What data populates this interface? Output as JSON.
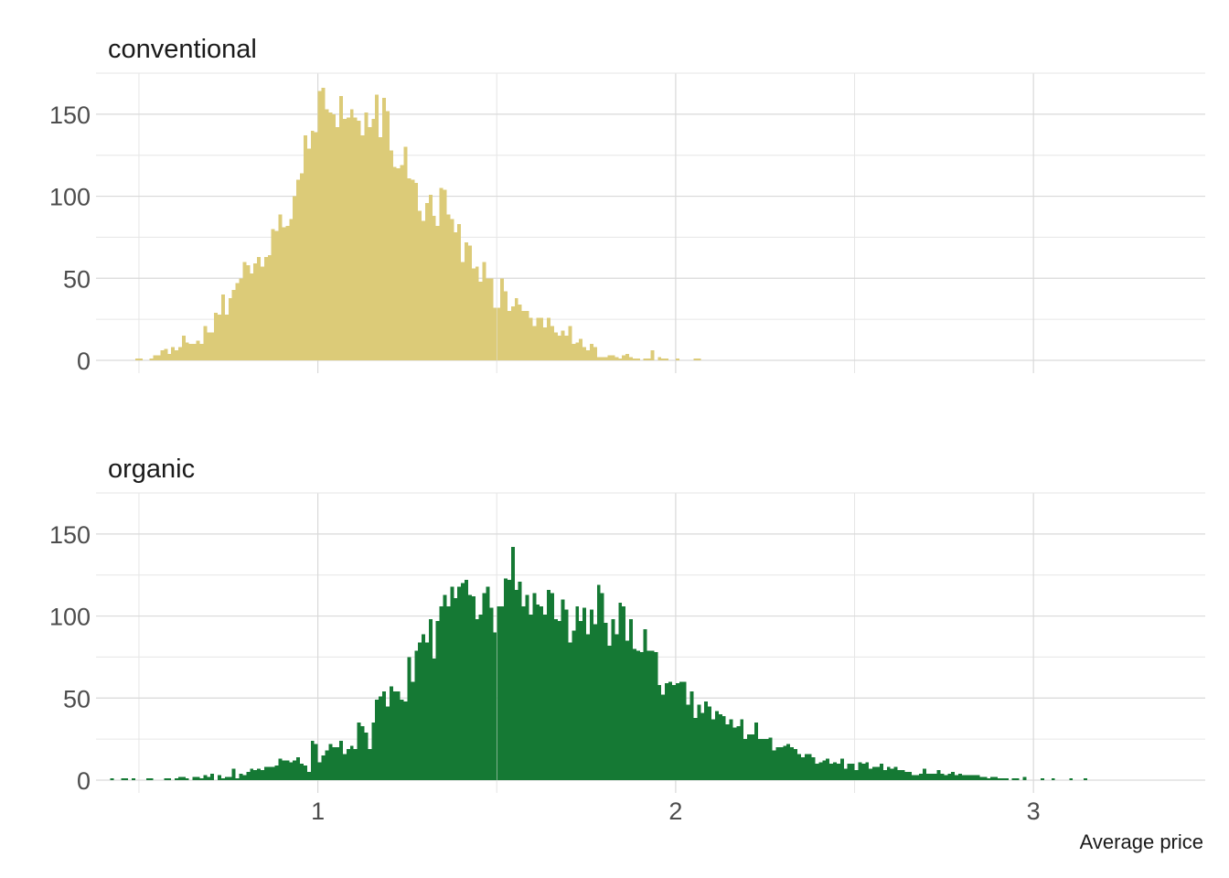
{
  "chart_data": {
    "type": "bar",
    "subtype": "histogram",
    "facet_layout": "vertical",
    "x_axis": {
      "title": "Average price",
      "ticks": [
        1,
        2,
        3
      ],
      "tick_labels": [
        "1",
        "2",
        "3"
      ],
      "range": [
        0.38,
        3.48
      ],
      "bin_start": 0.4,
      "bin_width": 0.01
    },
    "y_axis": {
      "ticks": [
        0,
        50,
        100,
        150
      ],
      "tick_labels": [
        "0",
        "50",
        "100",
        "150"
      ],
      "range": [
        0,
        175
      ]
    },
    "grid": true,
    "legend": "none",
    "panels": [
      {
        "title": "conventional",
        "color": "#dccb78",
        "values": [
          0,
          0,
          0,
          0,
          0,
          0,
          0,
          0,
          0,
          1,
          1,
          0,
          0,
          1,
          3,
          3,
          6,
          7,
          4,
          8,
          6,
          8,
          15,
          11,
          10,
          10,
          12,
          10,
          21,
          17,
          17,
          29,
          28,
          40,
          28,
          38,
          43,
          47,
          50,
          60,
          58,
          53,
          59,
          63,
          57,
          63,
          64,
          80,
          79,
          89,
          81,
          82,
          86,
          100,
          110,
          114,
          137,
          129,
          140,
          139,
          164,
          166,
          153,
          151,
          150,
          142,
          161,
          147,
          148,
          153,
          148,
          146,
          137,
          151,
          142,
          147,
          162,
          136,
          160,
          152,
          128,
          118,
          117,
          119,
          130,
          111,
          110,
          108,
          91,
          85,
          96,
          101,
          88,
          82,
          105,
          104,
          89,
          86,
          78,
          83,
          60,
          72,
          70,
          56,
          57,
          48,
          60,
          50,
          50,
          32,
          32,
          50,
          42,
          30,
          33,
          38,
          34,
          30,
          30,
          26,
          21,
          26,
          26,
          20,
          26,
          21,
          17,
          15,
          18,
          15,
          21,
          10,
          11,
          13,
          8,
          6,
          10,
          8,
          2,
          2,
          2,
          3,
          3,
          2,
          1,
          3,
          4,
          2,
          1,
          1,
          0,
          1,
          1,
          6,
          0,
          2,
          1,
          1,
          0,
          0,
          1,
          0,
          0,
          0,
          0,
          1,
          1,
          0,
          0,
          0
        ]
      },
      {
        "title": "organic",
        "color": "#157934",
        "values": [
          0,
          0,
          1,
          0,
          0,
          1,
          1,
          0,
          1,
          0,
          0,
          0,
          1,
          1,
          0,
          0,
          0,
          1,
          1,
          0,
          1,
          2,
          2,
          1,
          0,
          2,
          2,
          1,
          3,
          2,
          4,
          0,
          3,
          1,
          2,
          2,
          7,
          1,
          4,
          3,
          5,
          7,
          6,
          7,
          6,
          8,
          8,
          8,
          9,
          13,
          12,
          12,
          11,
          12,
          14,
          10,
          9,
          5,
          24,
          22,
          11,
          15,
          18,
          22,
          20,
          20,
          24,
          16,
          19,
          21,
          19,
          35,
          33,
          29,
          19,
          35,
          49,
          51,
          54,
          45,
          57,
          54,
          54,
          49,
          48,
          75,
          60,
          79,
          84,
          89,
          84,
          98,
          74,
          97,
          106,
          113,
          106,
          118,
          111,
          118,
          120,
          122,
          113,
          112,
          98,
          101,
          114,
          118,
          105,
          90,
          106,
          106,
          123,
          122,
          142,
          116,
          121,
          106,
          113,
          101,
          114,
          107,
          106,
          101,
          116,
          114,
          98,
          97,
          110,
          104,
          84,
          91,
          106,
          97,
          105,
          89,
          104,
          95,
          119,
          114,
          96,
          82,
          98,
          89,
          108,
          106,
          85,
          98,
          80,
          79,
          78,
          92,
          79,
          79,
          78,
          58,
          52,
          59,
          60,
          58,
          59,
          60,
          60,
          46,
          54,
          38,
          46,
          41,
          48,
          45,
          37,
          42,
          40,
          39,
          34,
          37,
          32,
          33,
          37,
          25,
          28,
          28,
          35,
          25,
          25,
          25,
          26,
          18,
          20,
          20,
          21,
          22,
          20,
          19,
          16,
          14,
          16,
          16,
          14,
          10,
          11,
          12,
          13,
          10,
          11,
          10,
          13,
          7,
          10,
          10,
          6,
          11,
          10,
          11,
          7,
          8,
          8,
          10,
          6,
          8,
          7,
          8,
          6,
          6,
          5,
          5,
          3,
          3,
          4,
          7,
          4,
          4,
          4,
          6,
          4,
          3,
          4,
          5,
          3,
          4,
          3,
          3,
          3,
          3,
          3,
          2,
          2,
          1,
          2,
          2,
          1,
          1,
          1,
          0,
          1,
          1,
          0,
          2,
          0,
          0,
          0,
          0,
          1,
          0,
          0,
          1,
          0,
          0,
          0,
          0,
          1,
          0,
          0,
          0,
          1,
          0,
          0,
          0,
          0,
          0,
          0,
          0,
          0,
          0,
          0
        ]
      }
    ]
  }
}
